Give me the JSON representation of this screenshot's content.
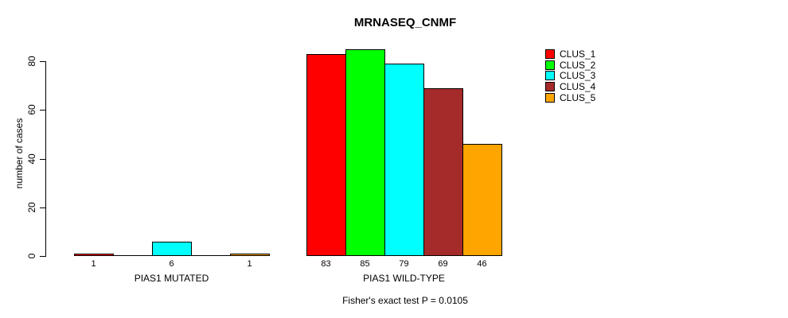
{
  "chart_data": {
    "type": "bar",
    "title": "MRNASEQ_CNMF",
    "subtitle": "Fisher's exact test P = 0.0105",
    "ylabel": "number of cases",
    "xlabel": "",
    "categories": [
      "PIAS1 MUTATED",
      "PIAS1 WILD-TYPE"
    ],
    "series": [
      {
        "name": "CLUS_1",
        "color": "#FF0000",
        "values": [
          1,
          83
        ]
      },
      {
        "name": "CLUS_2",
        "color": "#00FF00",
        "values": [
          0,
          85
        ]
      },
      {
        "name": "CLUS_3",
        "color": "#00FFFF",
        "values": [
          6,
          79
        ]
      },
      {
        "name": "CLUS_4",
        "color": "#A52A2A",
        "values": [
          0,
          69
        ]
      },
      {
        "name": "CLUS_5",
        "color": "#FFA500",
        "values": [
          1,
          46
        ]
      }
    ],
    "y_ticks": [
      0,
      20,
      40,
      60,
      80
    ],
    "ylim": [
      0,
      85
    ],
    "bar_value_labels": [
      [
        1,
        null,
        6,
        null,
        1
      ],
      [
        83,
        85,
        79,
        69,
        46
      ]
    ],
    "legend": {
      "position": "top-right",
      "entries": [
        "CLUS_1",
        "CLUS_2",
        "CLUS_3",
        "CLUS_4",
        "CLUS_5"
      ]
    },
    "grid": false
  }
}
